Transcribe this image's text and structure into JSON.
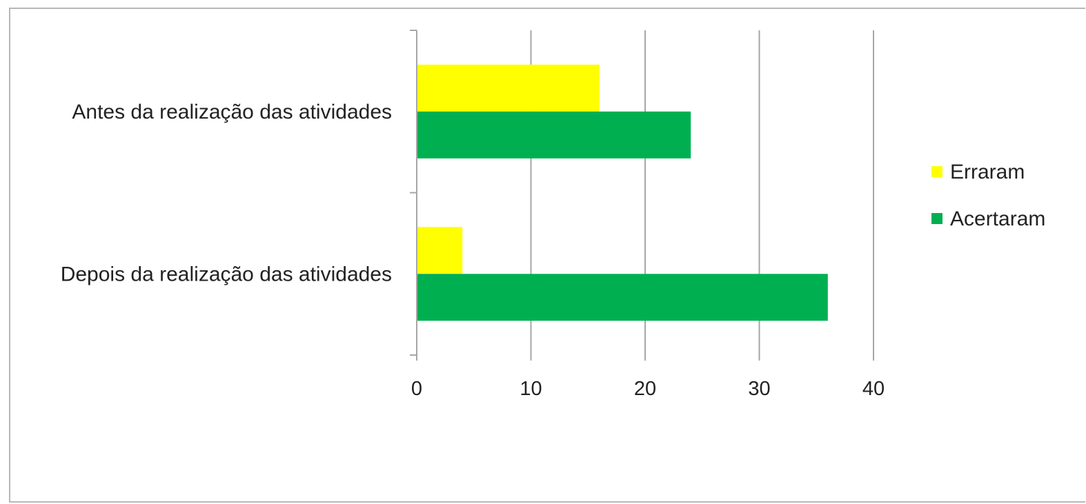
{
  "chart_data": {
    "type": "bar",
    "orientation": "horizontal",
    "categories": [
      "Antes da realização das atividades",
      "Depois da realização das atividades"
    ],
    "series": [
      {
        "name": "Erraram",
        "values": [
          16,
          4
        ],
        "color": "#ffff00"
      },
      {
        "name": "Acertaram",
        "values": [
          24,
          36
        ],
        "color": "#00b050"
      }
    ],
    "xlim": [
      0,
      40
    ],
    "xticks": [
      "0",
      "10",
      "20",
      "30",
      "40"
    ],
    "grid": true,
    "legend_position": "right"
  }
}
